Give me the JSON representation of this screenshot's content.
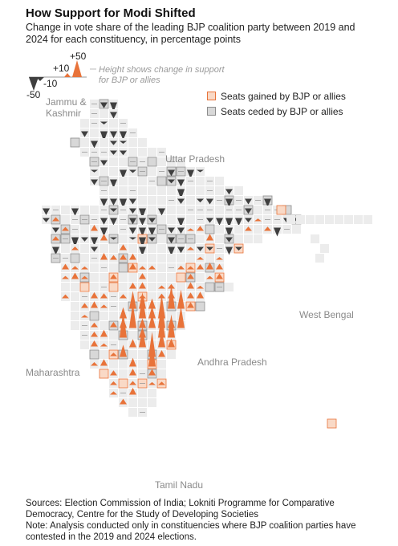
{
  "title": "How Support for Modi Shifted",
  "subtitle": "Change in vote share of the leading BJP coalition party between 2019 and 2024 for each constituency, in percentage points",
  "key": {
    "plus50": "+50",
    "plus10": "+10",
    "minus10": "-10",
    "minus50": "-50",
    "note_line1": "Height shows change in support",
    "note_line2": "for BJP or allies"
  },
  "legend": {
    "gained": "Seats gained by BJP or allies",
    "ceded": "Seats ceded by BJP or allies"
  },
  "state_labels": {
    "jk_line1": "Jammu &",
    "jk_line2": "Kashmir",
    "up": "Uttar Pradesh",
    "wb": "West Bengal",
    "mh": "Maharashtra",
    "ap": "Andhra Pradesh",
    "tn": "Tamil Nadu"
  },
  "colors": {
    "gain_arrow": "#e8733a",
    "loss_arrow": "#3f3f3f",
    "gained_fill": "#f9d9c6",
    "gained_border": "#e8733a",
    "ceded_fill": "#d8d8d8",
    "ceded_border": "#8c8c8c",
    "neutral_fill": "#ececec",
    "label_grey": "#8a8a8a"
  },
  "footer": {
    "line1": "Sources: Election Commission of India; Lokniti Programme for Comparative Democracy, Centre for the Study of Developing Societies",
    "line2": "Note: Analysis conducted only in constituencies where BJP coalition parties have contested in the 2019 and 2024 elections."
  }
}
